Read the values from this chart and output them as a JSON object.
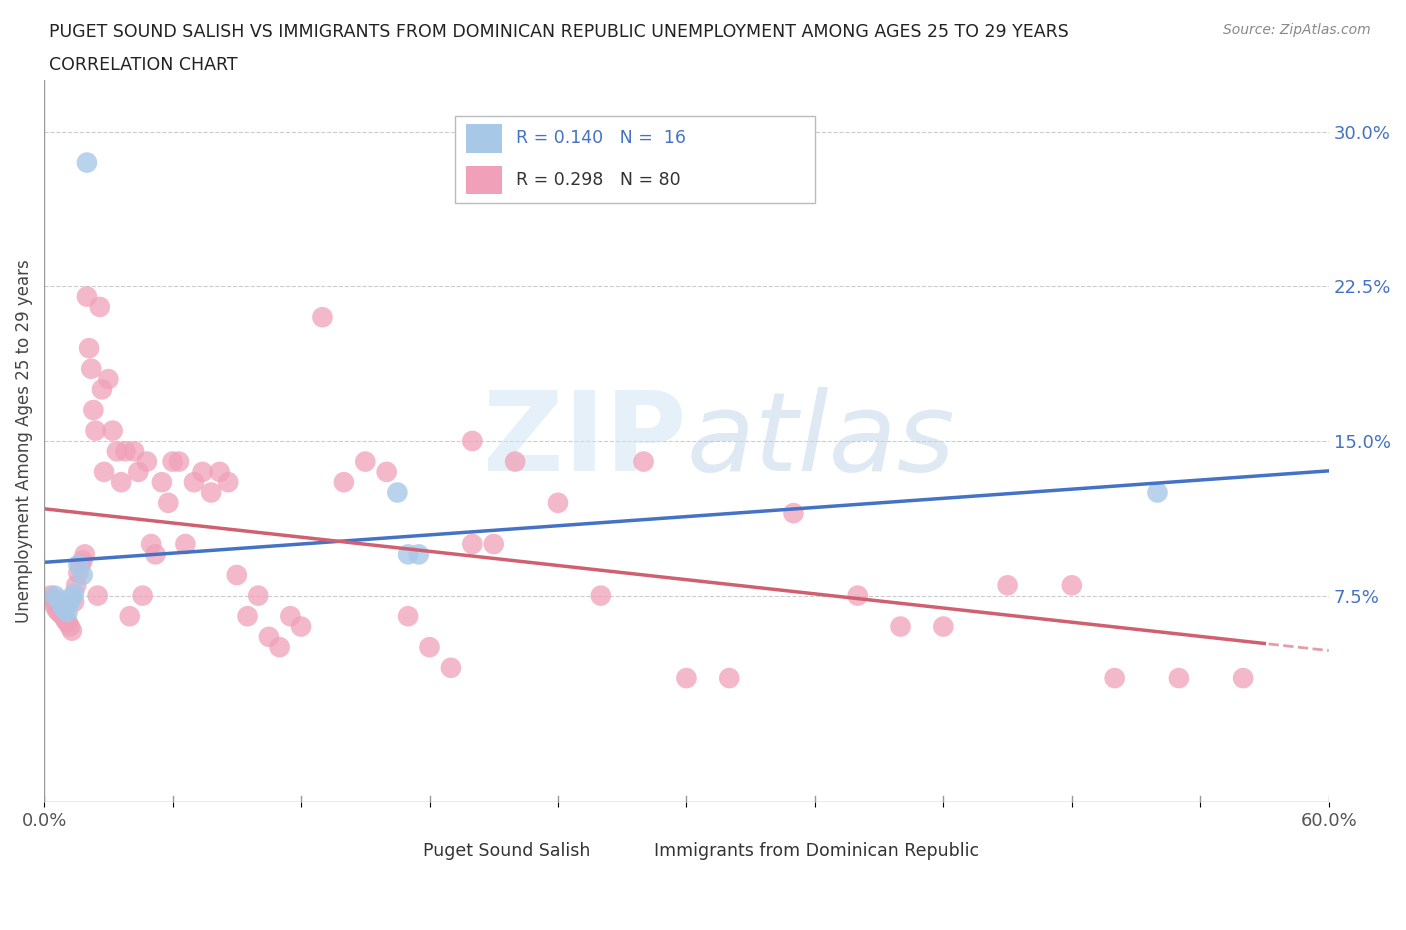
{
  "title_line1": "PUGET SOUND SALISH VS IMMIGRANTS FROM DOMINICAN REPUBLIC UNEMPLOYMENT AMONG AGES 25 TO 29 YEARS",
  "title_line2": "CORRELATION CHART",
  "source_text": "Source: ZipAtlas.com",
  "ylabel": "Unemployment Among Ages 25 to 29 years",
  "xlim": [
    0.0,
    0.6
  ],
  "ylim": [
    -0.025,
    0.325
  ],
  "yticks_right": [
    0.075,
    0.15,
    0.225,
    0.3
  ],
  "ytick_right_labels": [
    "7.5%",
    "15.0%",
    "22.5%",
    "30.0%"
  ],
  "grid_color": "#cccccc",
  "watermark_text": "ZIPatlas",
  "color_blue": "#a8c8e8",
  "color_pink": "#f0a0b8",
  "color_blue_dark": "#4472c4",
  "color_pink_dark": "#d06070",
  "blue_scatter_x": [
    0.005,
    0.007,
    0.008,
    0.009,
    0.01,
    0.011,
    0.012,
    0.013,
    0.014,
    0.016,
    0.018,
    0.02,
    0.165,
    0.17,
    0.175,
    0.52
  ],
  "blue_scatter_y": [
    0.075,
    0.073,
    0.071,
    0.069,
    0.068,
    0.067,
    0.072,
    0.074,
    0.076,
    0.09,
    0.085,
    0.285,
    0.125,
    0.095,
    0.095,
    0.125
  ],
  "pink_scatter_x": [
    0.003,
    0.004,
    0.005,
    0.006,
    0.007,
    0.008,
    0.009,
    0.01,
    0.011,
    0.012,
    0.013,
    0.014,
    0.015,
    0.016,
    0.017,
    0.018,
    0.019,
    0.02,
    0.021,
    0.022,
    0.023,
    0.024,
    0.025,
    0.026,
    0.027,
    0.028,
    0.03,
    0.032,
    0.034,
    0.036,
    0.038,
    0.04,
    0.042,
    0.044,
    0.046,
    0.048,
    0.05,
    0.052,
    0.055,
    0.058,
    0.06,
    0.063,
    0.066,
    0.07,
    0.074,
    0.078,
    0.082,
    0.086,
    0.09,
    0.095,
    0.1,
    0.105,
    0.11,
    0.115,
    0.12,
    0.13,
    0.14,
    0.15,
    0.16,
    0.17,
    0.18,
    0.19,
    0.2,
    0.22,
    0.24,
    0.26,
    0.28,
    0.3,
    0.32,
    0.35,
    0.38,
    0.4,
    0.42,
    0.45,
    0.48,
    0.5,
    0.53,
    0.56,
    0.2,
    0.21
  ],
  "pink_scatter_y": [
    0.075,
    0.073,
    0.07,
    0.068,
    0.067,
    0.066,
    0.065,
    0.063,
    0.062,
    0.06,
    0.058,
    0.072,
    0.08,
    0.086,
    0.09,
    0.092,
    0.095,
    0.22,
    0.195,
    0.185,
    0.165,
    0.155,
    0.075,
    0.215,
    0.175,
    0.135,
    0.18,
    0.155,
    0.145,
    0.13,
    0.145,
    0.065,
    0.145,
    0.135,
    0.075,
    0.14,
    0.1,
    0.095,
    0.13,
    0.12,
    0.14,
    0.14,
    0.1,
    0.13,
    0.135,
    0.125,
    0.135,
    0.13,
    0.085,
    0.065,
    0.075,
    0.055,
    0.05,
    0.065,
    0.06,
    0.21,
    0.13,
    0.14,
    0.135,
    0.065,
    0.05,
    0.04,
    0.1,
    0.14,
    0.12,
    0.075,
    0.14,
    0.035,
    0.035,
    0.115,
    0.075,
    0.06,
    0.06,
    0.08,
    0.08,
    0.035,
    0.035,
    0.035,
    0.15,
    0.1
  ]
}
